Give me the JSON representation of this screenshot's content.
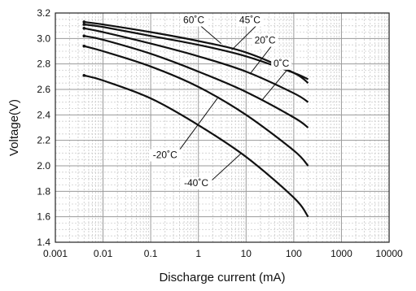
{
  "chart_data": {
    "type": "line",
    "title": "",
    "xlabel": "Discharge current (mA)",
    "ylabel": "Voltage(V)",
    "x_scale": "log",
    "xlim": [
      0.001,
      10000
    ],
    "ylim": [
      1.4,
      3.2
    ],
    "grid": true,
    "x_ticks": [
      "0.001",
      "0.01",
      "0.1",
      "1",
      "10",
      "100",
      "1000",
      "10000"
    ],
    "y_ticks": [
      "1.4",
      "1.6",
      "1.8",
      "2.0",
      "2.2",
      "2.4",
      "2.6",
      "2.8",
      "3.0",
      "3.2"
    ],
    "series": [
      {
        "name": "60˚C",
        "x": [
          0.004,
          0.01,
          0.1,
          1,
          10,
          100,
          200
        ],
        "y": [
          3.13,
          3.11,
          3.05,
          2.98,
          2.89,
          2.73,
          2.65
        ]
      },
      {
        "name": "45˚C",
        "x": [
          0.004,
          0.01,
          0.1,
          1,
          10,
          100,
          200
        ],
        "y": [
          3.11,
          3.09,
          3.02,
          2.95,
          2.86,
          2.73,
          2.68
        ]
      },
      {
        "name": "20˚C",
        "x": [
          0.004,
          0.01,
          0.1,
          1,
          10,
          100,
          200
        ],
        "y": [
          3.08,
          3.05,
          2.96,
          2.86,
          2.74,
          2.57,
          2.5
        ]
      },
      {
        "name": "0˚C",
        "x": [
          0.004,
          0.01,
          0.1,
          1,
          10,
          100,
          200
        ],
        "y": [
          3.02,
          2.99,
          2.88,
          2.74,
          2.58,
          2.38,
          2.3
        ]
      },
      {
        "name": "-20˚C",
        "x": [
          0.004,
          0.01,
          0.1,
          1,
          10,
          100,
          200
        ],
        "y": [
          2.94,
          2.9,
          2.78,
          2.62,
          2.4,
          2.12,
          2.0
        ]
      },
      {
        "name": "-40˚C",
        "x": [
          0.004,
          0.01,
          0.1,
          1,
          10,
          100,
          200
        ],
        "y": [
          2.71,
          2.67,
          2.53,
          2.32,
          2.07,
          1.75,
          1.6
        ]
      }
    ],
    "labels": [
      {
        "text": "60˚C",
        "x": 0.8,
        "y": 3.12,
        "to_x": 3,
        "to_y": 2.96
      },
      {
        "text": "45˚C",
        "x": 12,
        "y": 3.12,
        "to_x": 5,
        "to_y": 2.91
      },
      {
        "text": "20˚C",
        "x": 25,
        "y": 2.96,
        "to_x": 12,
        "to_y": 2.72
      },
      {
        "text": "0˚C",
        "x": 55,
        "y": 2.78,
        "to_x": 22,
        "to_y": 2.52
      },
      {
        "text": "-20˚C",
        "x": 0.2,
        "y": 2.06,
        "to_x": 2.5,
        "to_y": 2.53
      },
      {
        "text": "-40˚C",
        "x": 0.9,
        "y": 1.84,
        "to_x": 8,
        "to_y": 2.1
      }
    ]
  }
}
